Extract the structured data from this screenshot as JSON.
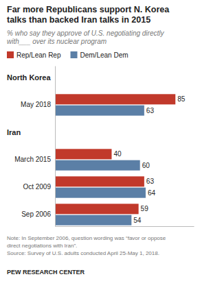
{
  "chart_data": {
    "type": "bar",
    "orientation": "horizontal",
    "title": "Far more Republicans support N. Korea\ntalks than backed Iran talks in 2015",
    "subtitle": "% who say they approve of U.S. negotiating directly\nwith___ over its nuclear program",
    "categories": [
      "May 2018",
      "March 2015",
      "Oct 2009",
      "Sep 2006"
    ],
    "series": [
      {
        "name": "Rep/Lean Rep",
        "color": "#C1392B",
        "values": [
          85,
          40,
          63,
          59
        ]
      },
      {
        "name": "Dem/Lean Dem",
        "color": "#5B7FA6",
        "values": [
          63,
          60,
          64,
          54
        ]
      }
    ],
    "xlim": [
      0,
      98
    ],
    "data_labels": true,
    "tick_labels": "y",
    "grid": false,
    "legend": "top",
    "annotations": [
      {
        "text": "North Korea",
        "category": "May 2018"
      },
      {
        "text": "Iran",
        "category": "March 2015"
      }
    ],
    "notes": [
      "Note: In September 2006, question wording was “favor or oppose",
      "direct negotiations with Iran”.",
      "Source: Survey of U.S. adults conducted April 25-May 1, 2018."
    ],
    "source": "PEW RESEARCH CENTER"
  }
}
